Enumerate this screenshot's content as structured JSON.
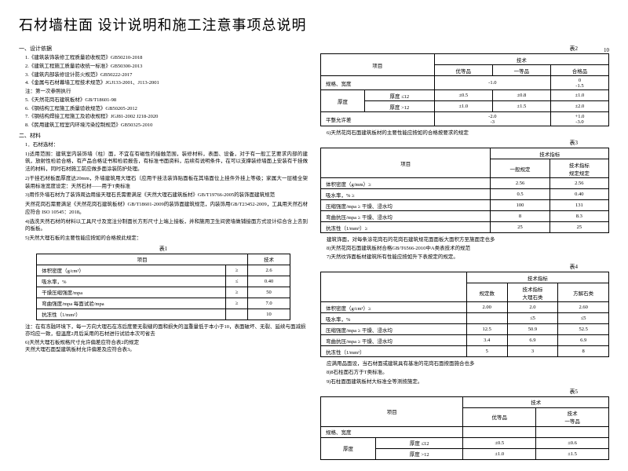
{
  "title": "石材墙柱面 设计说明和施工注意事项总说明",
  "page_marker": "10",
  "section1": {
    "heading": "一、设计依据",
    "refs": [
      "1.《建筑装饰装修工程质量验收规范》GB50210-2018",
      "2.《建筑工程施工质量验收统一标准》GB50300-2013",
      "3.《建筑内部装修设计防火规范》GB50222-2017",
      "4.《金属与石材幕墙工程技术规范》JGJ133-2001、J113-2001",
      "    注：第一次参照执行",
      "5.《天然花岗石建筑板材》GB/T18601-98",
      "6.《钢结构工程施工质量验收规范》GB50205-2012",
      "7.《钢结构焊接工程施工及验收规程》JGJ81-2002 J218-2020",
      "8.《民用建筑工程室内环境污染控制规范》GB50325-2010"
    ]
  },
  "section2": {
    "heading": "二、材料",
    "sub1": "1．石材选材：",
    "paras": [
      "1)适用范围：建筑室内装饰墙（柱）面，不宜在有磁性的接触范围，装修材料，表面、设备，对于有一般工艺要求内部的建筑，放射性检验合格，有产品合格证书和检验报告，有标准书面资料，后续有说明条件，在可以支撑装修墙面上安装有干挂做法的材料，同时石材施工前应做多面涂装防护处理。",
      "2)干挂石材板面厚度达20mm，外墙建筑用大理石（应用干挂法装饰贴面板在其墙面位上挂件外挂上等级；家属大一层楼全架装用标准宽度设定：天然石材——用于T类标准",
      "3)用作外墙石材为了装饰周边用接天理石氏需要满足《天然大理石建筑板材》GB/T19766-2005的装饰面建筑规范",
      "天然花岗石需要满足《天然花岗石建筑板材》GB/T18601-2009的装饰面建筑规范，内装饰用GB/T23452-2009，工具用天然石材应符合 ISO 10545：2018。",
      "4)选洗天然石材的材料以工具尺寸及宽注分制面长方形尺寸上端上接板，并和施用卫生间瓷墙做铺接面方式设计综合含上去别的板板。"
    ],
    "sub2": "5)天然大理石板的主要性能应按如的合格按此规定："
  },
  "table1": {
    "label": "表1",
    "headers": [
      "项目",
      "",
      "技术"
    ],
    "rows": [
      [
        "体积密度（g/cm³）",
        "≥",
        "2.6"
      ],
      [
        "吸水率，%",
        "≤",
        "0.40"
      ],
      [
        "干燥压缩强度/mpa",
        "≥",
        "50"
      ],
      [
        "弯曲强度/mpa  每面试验/mpa",
        "≥",
        "7.0"
      ],
      [
        "抗冻性（1/mm²）",
        "",
        "10"
      ]
    ],
    "note1": "注：在有冻融环境下，每一方向大理石在冻后度要无裂缝的面和损失的湿重量低于本小于10，表面破坏、无裂、延续与面减损亦均应一致，但温度2月后采用的石材进行试验本次可省去",
    "note2": "6)天然大理石板规格尺寸允许偏差应符合表2的规定\n天然大理石面型建筑板材允许偏差及应符合表3。"
  },
  "table2": {
    "label": "表2",
    "headers": [
      "项目",
      "优等品",
      "一等品",
      "合格品"
    ],
    "rows": [
      [
        "规格、宽度",
        "",
        "-1.0",
        "",
        "0\n-1.5"
      ],
      [
        "厚度  ≤12",
        "±0.5",
        "±0.8",
        "±1.0"
      ],
      [
        "厚度  >12",
        "±1.0",
        "±1.5",
        "±2.0"
      ],
      [
        "平整允许差",
        "",
        "-2.0\n-3",
        "",
        "+1.0\n-3.0"
      ]
    ],
    "note": "6)天然花岗石面建筑板材的主要性能应按如的合格按要求的规定"
  },
  "table3": {
    "label": "表3",
    "headers": [
      "项目",
      "",
      "一般规定",
      "技术指标\n规定规定"
    ],
    "rows": [
      [
        "体积密度（g/mm）≥",
        "",
        "2.56",
        "2.56"
      ],
      [
        "吸水率，%  ≥",
        "",
        "0.5",
        "0.40"
      ],
      [
        "压缩强度/mpa ≥  干燥、浸水均",
        "",
        "100",
        "131"
      ],
      [
        "弯曲抗压/mpa ≥  干燥、浸水均",
        "",
        "8",
        "8.3"
      ],
      [
        "抗冻性（1/mm²）≥",
        "",
        "25",
        "25"
      ]
    ],
    "note1": "    建筑饰面，对每条涂花岗石的花岗石建筑规花面面板大面积方至施面定也多",
    "note2": "8)天然花岗石面建筑板材合格GB/T6566-2010中A类表技术的规范",
    "note3": "7)天然纹饰面板材建筑所有性能应按如升下表按定的规定。"
  },
  "table4": {
    "label": "表4",
    "headers": [
      "",
      "",
      "规定数",
      "技术指标\n大理石类",
      "方解石类"
    ],
    "rows": [
      [
        "体积密度（g/cm³）≥",
        "",
        "2.00",
        "2.0",
        "2.60"
      ],
      [
        "吸水率，%",
        "",
        "",
        "≤5",
        "≤5"
      ],
      [
        "压缩强度/mpa  ≥  干燥、浸水均",
        "",
        "12.5",
        "50.9",
        "52.5"
      ],
      [
        "弯曲抗压/mpa ≥  干燥、浸水均",
        "",
        "3.4",
        "6.9",
        "6.9"
      ],
      [
        "抗冻性（1/mm²）",
        "",
        "5",
        "3",
        "8"
      ]
    ],
    "note1": "    应满用品面设，当石材面或建筑具有基准的花岗石面按面施合也多",
    "note2": "8)8石柱面石方于T类标准。",
    "note3": "9)石柱面面建筑板材大标准全等测按施定。"
  },
  "table5": {
    "label": "表5",
    "headers": [
      "项目",
      "优等品",
      "技术\n一等品"
    ],
    "rows": [
      [
        "规格、宽度",
        "",
        "",
        ""
      ],
      [
        "厚度  ≤12",
        "±0.5",
        "",
        "±0.6"
      ],
      [
        "厚度  >12",
        "±1.0",
        "",
        "±1.5"
      ]
    ]
  }
}
